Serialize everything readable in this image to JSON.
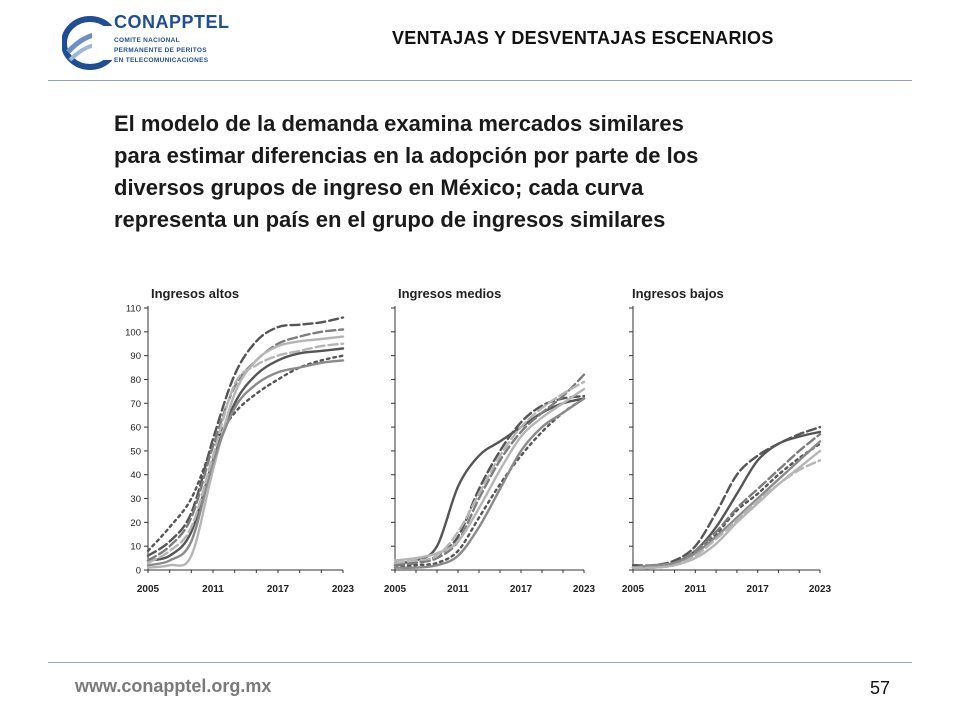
{
  "header": {
    "logo": {
      "name": "CONAPPTEL",
      "line1": "COMITE NACIONAL",
      "line2": "PERMANENTE DE PERITOS",
      "line3": "EN TELECOMUNICACIONES"
    },
    "title": "VENTAJAS Y DESVENTAJAS ESCENARIOS"
  },
  "body": {
    "lines": [
      "El modelo de la demanda examina mercados similares",
      "para estimar diferencias en la adopción por parte de los",
      "diversos grupos de ingreso en México; cada curva",
      "representa un país en el grupo de ingresos similares"
    ]
  },
  "footer": {
    "url": "www.conapptel.org.mx",
    "page": "57"
  },
  "colors": {
    "rule": "#8fa6bf",
    "logo": "#1f4e96",
    "dark": "#4a4a4a",
    "mid": "#7d7d7d",
    "light": "#b5b5b5"
  },
  "chart_data": [
    {
      "type": "line",
      "title": "Ingresos altos",
      "xlim": [
        2005,
        2023
      ],
      "ylim": [
        0,
        110
      ],
      "x_ticks": [
        "2005",
        "2011",
        "2017",
        "2023"
      ],
      "y_ticks": [
        "0",
        "10",
        "20",
        "30",
        "40",
        "50",
        "60",
        "70",
        "80",
        "90",
        "100",
        "110"
      ],
      "x": [
        2005,
        2007,
        2009,
        2011,
        2013,
        2015,
        2017,
        2019,
        2021,
        2023
      ],
      "series": [
        {
          "style": "solid",
          "color": "#555555",
          "values": [
            4,
            6,
            16,
            46,
            70,
            82,
            88,
            91,
            92,
            93
          ]
        },
        {
          "style": "dash",
          "color": "#555555",
          "values": [
            6,
            12,
            24,
            55,
            82,
            96,
            102,
            103,
            104,
            106
          ]
        },
        {
          "style": "dot",
          "color": "#555555",
          "values": [
            8,
            18,
            30,
            52,
            66,
            74,
            80,
            85,
            88,
            90
          ]
        },
        {
          "style": "dash",
          "color": "#7d7d7d",
          "values": [
            4,
            10,
            22,
            52,
            77,
            88,
            95,
            98,
            100,
            101
          ]
        },
        {
          "style": "solid",
          "color": "#b5b5b5",
          "values": [
            1,
            2,
            6,
            42,
            74,
            88,
            94,
            96,
            97,
            98
          ]
        },
        {
          "style": "solid",
          "color": "#8a8a8a",
          "values": [
            2,
            4,
            12,
            45,
            68,
            78,
            83,
            85,
            87,
            88
          ]
        },
        {
          "style": "dash",
          "color": "#b5b5b5",
          "values": [
            3,
            8,
            18,
            48,
            78,
            86,
            90,
            92,
            94,
            95
          ]
        }
      ]
    },
    {
      "type": "line",
      "title": "Ingresos medios",
      "xlim": [
        2005,
        2023
      ],
      "ylim": [
        0,
        110
      ],
      "x_ticks": [
        "2005",
        "2011",
        "2017",
        "2023"
      ],
      "y_ticks": [],
      "x": [
        2005,
        2007,
        2009,
        2011,
        2013,
        2015,
        2017,
        2019,
        2021,
        2023
      ],
      "series": [
        {
          "style": "solid",
          "color": "#555555",
          "values": [
            3,
            4,
            10,
            35,
            48,
            54,
            60,
            66,
            70,
            72
          ]
        },
        {
          "style": "dash",
          "color": "#555555",
          "values": [
            2,
            3,
            6,
            14,
            34,
            50,
            62,
            69,
            72,
            73
          ]
        },
        {
          "style": "dot",
          "color": "#555555",
          "values": [
            1,
            2,
            3,
            8,
            22,
            36,
            48,
            58,
            66,
            72
          ]
        },
        {
          "style": "dash",
          "color": "#7d7d7d",
          "values": [
            2,
            3,
            5,
            12,
            30,
            46,
            58,
            66,
            73,
            82
          ]
        },
        {
          "style": "solid",
          "color": "#b5b5b5",
          "values": [
            4,
            5,
            7,
            12,
            26,
            42,
            56,
            64,
            70,
            76
          ]
        },
        {
          "style": "solid",
          "color": "#8a8a8a",
          "values": [
            1,
            1,
            2,
            6,
            18,
            34,
            50,
            60,
            66,
            72
          ]
        },
        {
          "style": "dash",
          "color": "#b5b5b5",
          "values": [
            3,
            4,
            6,
            16,
            32,
            48,
            60,
            68,
            74,
            79
          ]
        }
      ]
    },
    {
      "type": "line",
      "title": "Ingresos bajos",
      "xlim": [
        2005,
        2023
      ],
      "ylim": [
        0,
        110
      ],
      "x_ticks": [
        "2005",
        "2011",
        "2017",
        "2023"
      ],
      "y_ticks": [],
      "x": [
        2005,
        2007,
        2009,
        2011,
        2013,
        2015,
        2017,
        2019,
        2021,
        2023
      ],
      "series": [
        {
          "style": "solid",
          "color": "#555555",
          "values": [
            1,
            1,
            3,
            8,
            18,
            32,
            46,
            53,
            56,
            58
          ]
        },
        {
          "style": "dash",
          "color": "#555555",
          "values": [
            2,
            2,
            4,
            10,
            24,
            40,
            48,
            53,
            57,
            60
          ]
        },
        {
          "style": "dot",
          "color": "#555555",
          "values": [
            1,
            2,
            3,
            7,
            15,
            25,
            32,
            40,
            47,
            53
          ]
        },
        {
          "style": "dash",
          "color": "#7d7d7d",
          "values": [
            1,
            1,
            3,
            8,
            16,
            26,
            34,
            42,
            50,
            57
          ]
        },
        {
          "style": "solid",
          "color": "#b5b5b5",
          "values": [
            1,
            1,
            2,
            5,
            11,
            20,
            28,
            36,
            43,
            50
          ]
        },
        {
          "style": "solid",
          "color": "#8a8a8a",
          "values": [
            1,
            2,
            3,
            7,
            14,
            22,
            30,
            38,
            46,
            54
          ]
        },
        {
          "style": "dash",
          "color": "#b5b5b5",
          "values": [
            1,
            1,
            2,
            6,
            13,
            21,
            29,
            36,
            42,
            46
          ]
        }
      ]
    }
  ]
}
